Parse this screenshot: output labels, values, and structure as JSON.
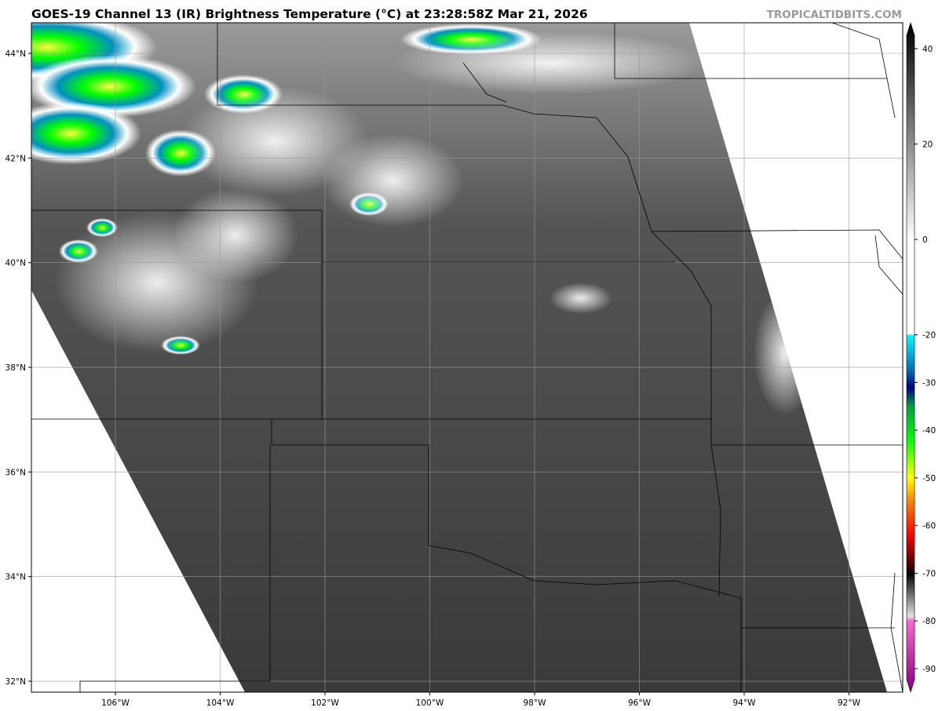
{
  "header": {
    "title": "GOES-19 Channel 13 (IR) Brightness Temperature (°C) at 23:28:58Z Mar 21, 2026",
    "brand": "TROPICALTIDBITS.COM"
  },
  "map": {
    "lon_labels": [
      "106°W",
      "104°W",
      "102°W",
      "100°W",
      "98°W",
      "96°W",
      "94°W",
      "92°W"
    ],
    "lat_labels": [
      "32°N",
      "34°N",
      "36°N",
      "38°N",
      "40°N",
      "42°N",
      "44°N"
    ],
    "lon_values": [
      -106,
      -104,
      -102,
      -100,
      -98,
      -96,
      -94,
      -92
    ],
    "lat_values": [
      32,
      34,
      36,
      38,
      40,
      42,
      44
    ],
    "background": "#ffffff",
    "land_shade": "#4a4a4a",
    "grid_color": "#9a9a9a"
  },
  "colorbar": {
    "labels": [
      "40",
      "20",
      "0",
      "-20",
      "-30",
      "-40",
      "-50",
      "-60",
      "-70",
      "-80",
      "-90"
    ],
    "values": [
      40,
      20,
      0,
      -20,
      -30,
      -40,
      -50,
      -60,
      -70,
      -80,
      -90
    ],
    "colors": {
      "warm": "#000000",
      "cold_white": "#ffffff",
      "cyan": "#00ffff",
      "blue": "#0060b0",
      "navy": "#000080",
      "green": "#00c040",
      "lime": "#00ff00",
      "yellow": "#ffff00",
      "orange": "#ff8000",
      "red": "#ff0000",
      "darkred": "#600000",
      "pink": "#ff66cc",
      "purple": "#800080"
    }
  }
}
